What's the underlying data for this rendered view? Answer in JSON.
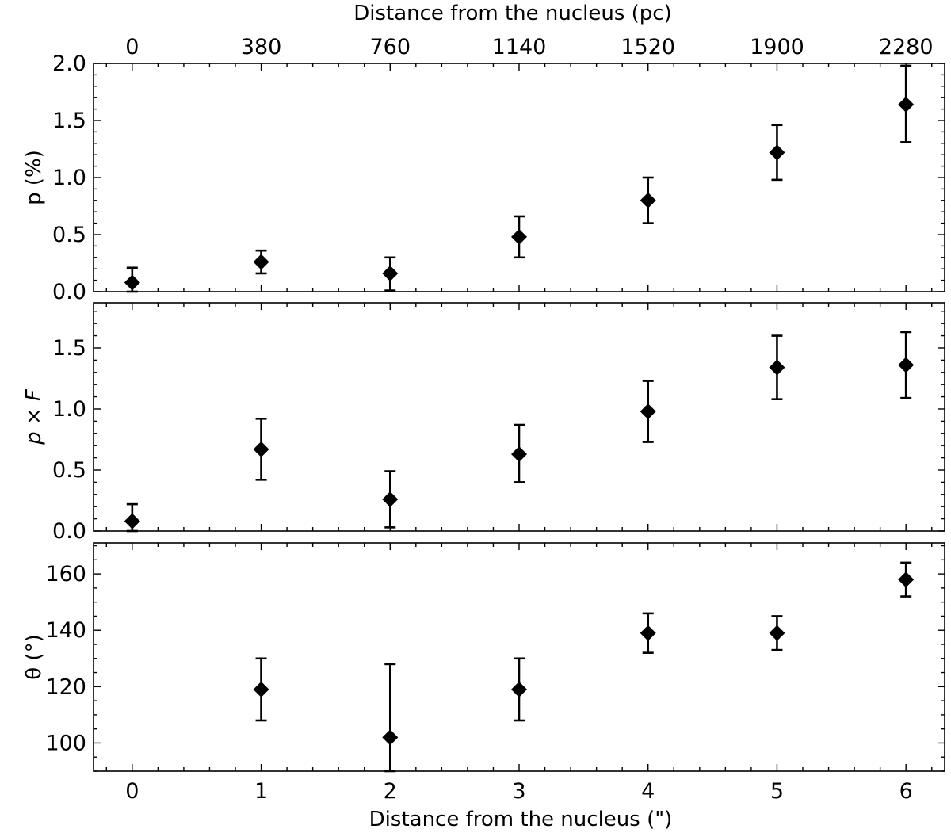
{
  "chart_data": {
    "type": "scatter",
    "x_label": "Distance from the nucleus (\")",
    "top_x_label": "Distance from the nucleus (pc)",
    "x_range": [
      -0.3,
      6.3
    ],
    "x_ticks": [
      0,
      1,
      2,
      3,
      4,
      5,
      6
    ],
    "x_tick_labels": [
      "0",
      "1",
      "2",
      "3",
      "4",
      "5",
      "6"
    ],
    "top_x_tick_labels": [
      "0",
      "380",
      "760",
      "1140",
      "1520",
      "1900",
      "2280"
    ],
    "marker": "diamond",
    "marker_color": "#000000",
    "panels": [
      {
        "name": "p-panel",
        "y_label": "p (%)",
        "y_range": [
          0.0,
          2.0
        ],
        "y_ticks": [
          0.0,
          0.5,
          1.0,
          1.5,
          2.0
        ],
        "y_tick_labels": [
          "0.0",
          "0.5",
          "1.0",
          "1.5",
          "2.0"
        ],
        "y_minor_step": 0.1,
        "points": [
          {
            "x": 0,
            "y": 0.08,
            "lo": 0.0,
            "hi": 0.21
          },
          {
            "x": 1,
            "y": 0.26,
            "lo": 0.16,
            "hi": 0.36
          },
          {
            "x": 2,
            "y": 0.16,
            "lo": 0.01,
            "hi": 0.3
          },
          {
            "x": 3,
            "y": 0.48,
            "lo": 0.3,
            "hi": 0.66
          },
          {
            "x": 4,
            "y": 0.8,
            "lo": 0.6,
            "hi": 1.0
          },
          {
            "x": 5,
            "y": 1.22,
            "lo": 0.98,
            "hi": 1.46
          },
          {
            "x": 6,
            "y": 1.64,
            "lo": 1.31,
            "hi": 1.98
          }
        ]
      },
      {
        "name": "pxf-panel",
        "y_label_parts": [
          "p",
          " × ",
          "F"
        ],
        "y_range": [
          0.0,
          1.87
        ],
        "y_ticks": [
          0.0,
          0.5,
          1.0,
          1.5
        ],
        "y_tick_labels": [
          "0.0",
          "0.5",
          "1.0",
          "1.5"
        ],
        "y_minor_step": 0.1,
        "points": [
          {
            "x": 0,
            "y": 0.08,
            "lo": 0.0,
            "hi": 0.22
          },
          {
            "x": 1,
            "y": 0.67,
            "lo": 0.42,
            "hi": 0.92
          },
          {
            "x": 2,
            "y": 0.26,
            "lo": 0.03,
            "hi": 0.49
          },
          {
            "x": 3,
            "y": 0.63,
            "lo": 0.4,
            "hi": 0.87
          },
          {
            "x": 4,
            "y": 0.98,
            "lo": 0.73,
            "hi": 1.23
          },
          {
            "x": 5,
            "y": 1.34,
            "lo": 1.08,
            "hi": 1.6
          },
          {
            "x": 6,
            "y": 1.36,
            "lo": 1.09,
            "hi": 1.63
          }
        ]
      },
      {
        "name": "theta-panel",
        "y_label": "θ (°)",
        "y_range": [
          90,
          171
        ],
        "y_ticks": [
          100,
          120,
          140,
          160
        ],
        "y_tick_labels": [
          "100",
          "120",
          "140",
          "160"
        ],
        "y_minor_step": 5,
        "points": [
          {
            "x": 1,
            "y": 119,
            "lo": 108,
            "hi": 130
          },
          {
            "x": 2,
            "y": 102,
            "lo": 90,
            "hi": 128
          },
          {
            "x": 3,
            "y": 119,
            "lo": 108,
            "hi": 130
          },
          {
            "x": 4,
            "y": 139,
            "lo": 132,
            "hi": 146
          },
          {
            "x": 5,
            "y": 139,
            "lo": 133,
            "hi": 145
          },
          {
            "x": 6,
            "y": 158,
            "lo": 152,
            "hi": 164
          }
        ]
      }
    ]
  }
}
